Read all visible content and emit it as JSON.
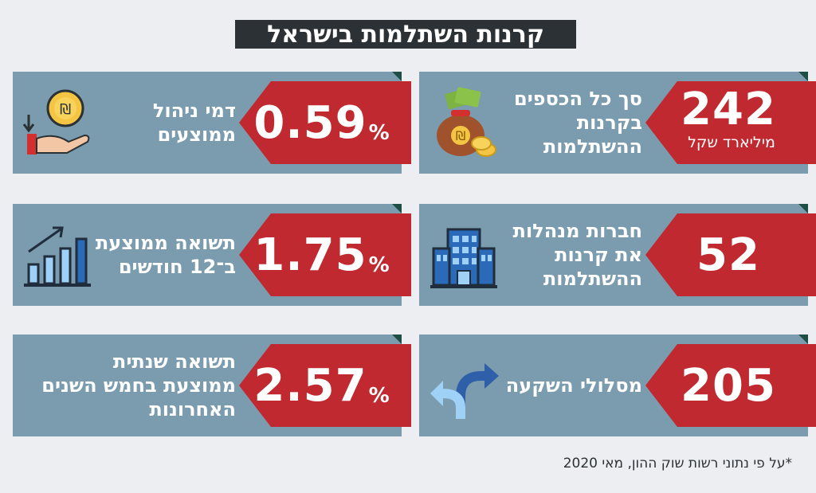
{
  "title": "קרנות השתלמות בישראל",
  "cards": [
    {
      "value": "242",
      "unit": "מיליארד שקל",
      "label": "סך כל הכספים בקרנות ההשתלמות",
      "icon": "money-bag-icon"
    },
    {
      "value": "0.59",
      "percent": "%",
      "label": "דמי ניהול ממוצעים",
      "icon": "coin-hand-icon"
    },
    {
      "value": "52",
      "label": "חברות מנהלות את קרנות ההשתלמות",
      "icon": "building-icon"
    },
    {
      "value": "1.75",
      "percent": "%",
      "label": "תשואה ממוצעת ב־12 חודשים",
      "icon": "growth-chart-icon"
    },
    {
      "value": "205",
      "label": "מסלולי השקעה",
      "icon": "split-arrows-icon"
    },
    {
      "value": "2.57",
      "percent": "%",
      "label": "תשואה שנתית ממוצעת בחמש השנים האחרונות",
      "icon": "percent-badge-icon"
    }
  ],
  "footnote": "*על פי נתוני רשות שוק ההון, מאי 2020",
  "colors": {
    "card": "#7a9cae",
    "badge": "#c0292f",
    "title_bg": "#2b3134",
    "background": "#edeef1"
  }
}
